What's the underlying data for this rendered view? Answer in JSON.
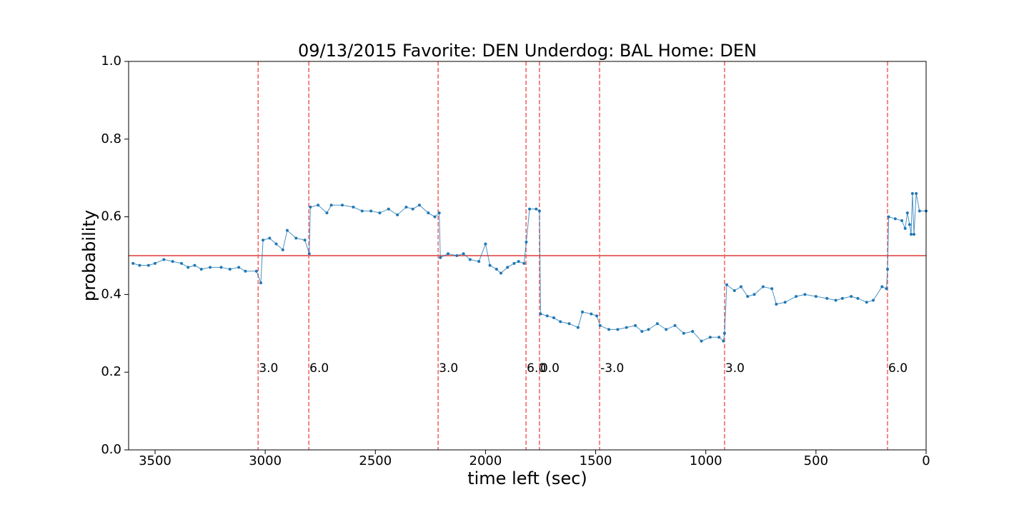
{
  "chart_data": {
    "type": "line",
    "title": "09/13/2015 Favorite: DEN Underdog: BAL Home: DEN",
    "xlabel": "time left (sec)",
    "ylabel": "probability",
    "xlim": [
      3620,
      0
    ],
    "ylim": [
      0,
      1
    ],
    "xticks": [
      3500,
      3000,
      2500,
      2000,
      1500,
      1000,
      500,
      0
    ],
    "yticks": [
      {
        "value": 0,
        "label": "0.0"
      },
      {
        "value": 0.2,
        "label": "0.2"
      },
      {
        "value": 0.4,
        "label": "0.4"
      },
      {
        "value": 0.6,
        "label": "0.6"
      },
      {
        "value": 0.8,
        "label": "0.8"
      },
      {
        "value": 1,
        "label": "1.0"
      }
    ],
    "hline": {
      "value": 0.5,
      "color": "#e03a3a"
    },
    "vline_color": "#f06060",
    "vlines": [
      {
        "x": 3032,
        "text": "3.0"
      },
      {
        "x": 2802,
        "text": "6.0"
      },
      {
        "x": 2215,
        "text": "3.0"
      },
      {
        "x": 1816,
        "text": "6.0"
      },
      {
        "x": 1755,
        "text": "0.0"
      },
      {
        "x": 1482,
        "text": "-3.0"
      },
      {
        "x": 915,
        "text": "3.0"
      },
      {
        "x": 175,
        "text": "6.0"
      }
    ],
    "vline_text_y": 0.21,
    "series": [
      {
        "color": "#1f77b4",
        "x": [
          3600,
          3570,
          3530,
          3500,
          3460,
          3420,
          3380,
          3350,
          3320,
          3290,
          3250,
          3200,
          3160,
          3120,
          3090,
          3040,
          3020,
          3010,
          2980,
          2950,
          2920,
          2900,
          2860,
          2820,
          2800,
          2795,
          2760,
          2720,
          2700,
          2650,
          2600,
          2560,
          2520,
          2480,
          2440,
          2400,
          2360,
          2330,
          2300,
          2260,
          2230,
          2210,
          2205,
          2170,
          2130,
          2100,
          2070,
          2030,
          2000,
          1980,
          1950,
          1930,
          1900,
          1870,
          1850,
          1825,
          1815,
          1800,
          1770,
          1755,
          1750,
          1720,
          1690,
          1660,
          1620,
          1580,
          1560,
          1520,
          1495,
          1480,
          1440,
          1400,
          1360,
          1320,
          1290,
          1260,
          1220,
          1180,
          1140,
          1100,
          1060,
          1020,
          980,
          940,
          920,
          915,
          905,
          870,
          840,
          810,
          780,
          740,
          700,
          680,
          640,
          590,
          550,
          500,
          450,
          410,
          380,
          340,
          310,
          270,
          240,
          200,
          180,
          175,
          170,
          140,
          110,
          95,
          85,
          75,
          68,
          62,
          55,
          45,
          30,
          0
        ],
        "values": [
          0.48,
          0.475,
          0.475,
          0.48,
          0.49,
          0.485,
          0.48,
          0.47,
          0.475,
          0.465,
          0.47,
          0.47,
          0.465,
          0.47,
          0.46,
          0.46,
          0.43,
          0.54,
          0.545,
          0.53,
          0.515,
          0.565,
          0.545,
          0.54,
          0.505,
          0.625,
          0.63,
          0.61,
          0.63,
          0.63,
          0.625,
          0.615,
          0.615,
          0.61,
          0.62,
          0.605,
          0.625,
          0.62,
          0.63,
          0.61,
          0.6,
          0.61,
          0.495,
          0.505,
          0.5,
          0.505,
          0.49,
          0.485,
          0.53,
          0.475,
          0.465,
          0.455,
          0.47,
          0.48,
          0.485,
          0.48,
          0.535,
          0.62,
          0.62,
          0.615,
          0.35,
          0.345,
          0.34,
          0.33,
          0.325,
          0.315,
          0.355,
          0.35,
          0.345,
          0.32,
          0.31,
          0.31,
          0.315,
          0.32,
          0.305,
          0.31,
          0.325,
          0.31,
          0.32,
          0.3,
          0.305,
          0.28,
          0.29,
          0.29,
          0.28,
          0.3,
          0.425,
          0.41,
          0.42,
          0.395,
          0.4,
          0.42,
          0.415,
          0.375,
          0.38,
          0.395,
          0.4,
          0.395,
          0.39,
          0.385,
          0.39,
          0.395,
          0.39,
          0.38,
          0.385,
          0.42,
          0.415,
          0.465,
          0.6,
          0.595,
          0.59,
          0.57,
          0.61,
          0.58,
          0.555,
          0.66,
          0.555,
          0.66,
          0.615,
          0.615
        ]
      }
    ]
  }
}
